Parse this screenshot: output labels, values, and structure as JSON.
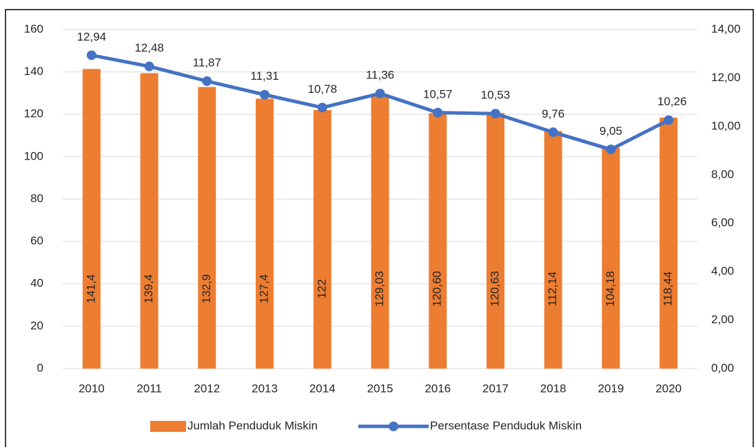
{
  "chart_data": {
    "type": "combo",
    "categories": [
      "2010",
      "2011",
      "2012",
      "2013",
      "2014",
      "2015",
      "2016",
      "2017",
      "2018",
      "2019",
      "2020"
    ],
    "series": [
      {
        "name": "Jumlah Penduduk Miskin",
        "type": "bar",
        "color": "#ed7d31",
        "values": [
          141.4,
          139.4,
          132.9,
          127.4,
          122,
          129.03,
          120.6,
          120.63,
          112.14,
          104.18,
          118.44
        ],
        "value_labels": [
          "141,4",
          "139,4",
          "132,9",
          "127,4",
          "122",
          "129,03",
          "120,60",
          "120,63",
          "112,14",
          "104,18",
          "118,44"
        ]
      },
      {
        "name": "Persentase Penduduk Miskin",
        "type": "line",
        "axis": "y2",
        "color": "#4472c4",
        "values": [
          12.94,
          12.48,
          11.87,
          11.31,
          10.78,
          11.36,
          10.57,
          10.53,
          9.76,
          9.05,
          10.26
        ],
        "value_labels": [
          "12,94",
          "12,48",
          "11,87",
          "11,31",
          "10,78",
          "11,36",
          "10,57",
          "10,53",
          "9,76",
          "9,05",
          "10,26"
        ]
      }
    ],
    "ylim": [
      0,
      160
    ],
    "yticks": [
      0,
      20,
      40,
      60,
      80,
      100,
      120,
      140,
      160
    ],
    "y2lim": [
      0,
      14
    ],
    "y2ticks": [
      {
        "value": 0,
        "label": "0,00"
      },
      {
        "value": 2,
        "label": "2,00"
      },
      {
        "value": 4,
        "label": "4,00"
      },
      {
        "value": 6,
        "label": "6,00"
      },
      {
        "value": 8,
        "label": "8,00"
      },
      {
        "value": 10,
        "label": "10,00"
      },
      {
        "value": 12,
        "label": "12,00"
      },
      {
        "value": 14,
        "label": "14,00"
      }
    ],
    "grid": true,
    "legend": "bottom"
  }
}
